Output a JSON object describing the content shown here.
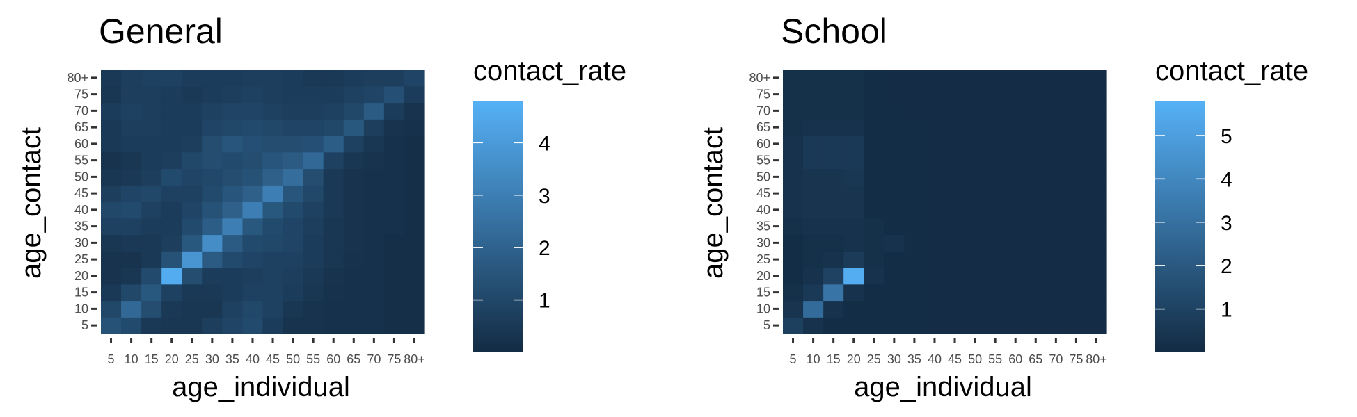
{
  "chart_data": [
    {
      "type": "heatmap",
      "title": "General",
      "xlabel": "age_individual",
      "ylabel": "age_contact",
      "legend_title": "contact_rate",
      "legend_placement": "right",
      "x_categories": [
        "5",
        "10",
        "15",
        "20",
        "25",
        "30",
        "35",
        "40",
        "45",
        "50",
        "55",
        "60",
        "65",
        "70",
        "75",
        "80+"
      ],
      "y_categories": [
        "5",
        "10",
        "15",
        "20",
        "25",
        "30",
        "35",
        "40",
        "45",
        "50",
        "55",
        "60",
        "65",
        "70",
        "75",
        "80+"
      ],
      "color_low": "#132b43",
      "color_high": "#56b1f7",
      "color_range": [
        0,
        4.8
      ],
      "legend_ticks": [
        1,
        2,
        3,
        4
      ],
      "z": [
        [
          1.4,
          1.1,
          0.5,
          0.4,
          0.4,
          0.7,
          0.9,
          1.1,
          0.6,
          0.3,
          0.3,
          0.2,
          0.2,
          0.2,
          0.15,
          0.15
        ],
        [
          1.0,
          2.2,
          1.2,
          0.5,
          0.4,
          0.4,
          0.8,
          1.0,
          0.8,
          0.4,
          0.3,
          0.2,
          0.2,
          0.2,
          0.15,
          0.15
        ],
        [
          0.5,
          1.0,
          1.6,
          0.8,
          0.5,
          0.5,
          0.6,
          0.8,
          0.8,
          0.6,
          0.4,
          0.25,
          0.2,
          0.2,
          0.15,
          0.15
        ],
        [
          0.3,
          0.4,
          1.1,
          4.6,
          1.2,
          0.6,
          0.6,
          0.7,
          0.8,
          0.7,
          0.5,
          0.3,
          0.2,
          0.2,
          0.15,
          0.15
        ],
        [
          0.3,
          0.3,
          0.5,
          1.4,
          3.8,
          1.7,
          1.1,
          0.9,
          0.8,
          0.8,
          0.6,
          0.4,
          0.25,
          0.2,
          0.15,
          0.15
        ],
        [
          0.4,
          0.5,
          0.5,
          0.7,
          1.6,
          3.5,
          1.7,
          1.1,
          1.0,
          0.9,
          0.6,
          0.4,
          0.3,
          0.2,
          0.15,
          0.15
        ],
        [
          0.8,
          0.8,
          0.6,
          0.6,
          1.1,
          1.8,
          3.0,
          1.6,
          1.1,
          0.9,
          0.7,
          0.4,
          0.3,
          0.2,
          0.2,
          0.15
        ],
        [
          1.0,
          1.1,
          0.8,
          0.6,
          0.9,
          1.4,
          1.9,
          3.0,
          1.6,
          1.1,
          0.8,
          0.5,
          0.3,
          0.2,
          0.2,
          0.15
        ],
        [
          0.7,
          0.9,
          1.0,
          0.8,
          0.8,
          1.1,
          1.5,
          1.9,
          3.0,
          1.5,
          1.0,
          0.5,
          0.3,
          0.2,
          0.2,
          0.15
        ],
        [
          0.4,
          0.5,
          0.7,
          1.1,
          0.9,
          1.0,
          1.2,
          1.4,
          1.9,
          2.4,
          1.2,
          0.5,
          0.3,
          0.2,
          0.2,
          0.15
        ],
        [
          0.3,
          0.4,
          0.6,
          0.7,
          1.0,
          1.2,
          1.1,
          1.2,
          1.5,
          1.7,
          2.2,
          0.8,
          0.4,
          0.3,
          0.2,
          0.15
        ],
        [
          0.5,
          0.6,
          0.6,
          0.6,
          0.7,
          1.2,
          1.5,
          1.3,
          1.2,
          1.2,
          1.3,
          1.8,
          0.8,
          0.4,
          0.2,
          0.15
        ],
        [
          0.5,
          0.7,
          0.7,
          0.6,
          0.6,
          0.9,
          1.0,
          1.1,
          1.0,
          0.9,
          0.9,
          1.0,
          1.6,
          0.7,
          0.3,
          0.2
        ],
        [
          0.6,
          0.8,
          0.7,
          0.6,
          0.6,
          0.8,
          0.9,
          0.9,
          0.8,
          0.7,
          0.7,
          0.8,
          1.0,
          1.7,
          0.6,
          0.3
        ],
        [
          0.4,
          0.7,
          0.7,
          0.6,
          0.5,
          0.6,
          0.7,
          0.8,
          0.7,
          0.6,
          0.6,
          0.6,
          0.8,
          0.9,
          1.3,
          0.6
        ],
        [
          0.5,
          0.7,
          0.8,
          0.8,
          0.6,
          0.6,
          0.6,
          0.7,
          0.7,
          0.6,
          0.5,
          0.5,
          0.6,
          0.7,
          0.7,
          0.9
        ]
      ]
    },
    {
      "type": "heatmap",
      "title": "School",
      "xlabel": "age_individual",
      "ylabel": "age_contact",
      "legend_title": "contact_rate",
      "legend_placement": "right",
      "x_categories": [
        "5",
        "10",
        "15",
        "20",
        "25",
        "30",
        "35",
        "40",
        "45",
        "50",
        "55",
        "60",
        "65",
        "70",
        "75",
        "80+"
      ],
      "y_categories": [
        "5",
        "10",
        "15",
        "20",
        "25",
        "30",
        "35",
        "40",
        "45",
        "50",
        "55",
        "60",
        "65",
        "70",
        "75",
        "80+"
      ],
      "color_low": "#132b43",
      "color_high": "#56b1f7",
      "color_range": [
        0,
        5.8
      ],
      "legend_ticks": [
        1,
        2,
        3,
        4,
        5
      ],
      "z": [
        [
          0.9,
          0.3,
          0.1,
          0.1,
          0.1,
          0.1,
          0.1,
          0.05,
          0.05,
          0.05,
          0.05,
          0.05,
          0.05,
          0.05,
          0.05,
          0.05
        ],
        [
          0.4,
          2.8,
          0.3,
          0.1,
          0.1,
          0.1,
          0.1,
          0.05,
          0.05,
          0.05,
          0.05,
          0.05,
          0.05,
          0.05,
          0.05,
          0.05
        ],
        [
          0.2,
          0.6,
          3.2,
          0.3,
          0.1,
          0.1,
          0.1,
          0.05,
          0.05,
          0.05,
          0.05,
          0.05,
          0.05,
          0.05,
          0.05,
          0.05
        ],
        [
          0.1,
          0.3,
          1.0,
          5.6,
          0.3,
          0.1,
          0.1,
          0.05,
          0.05,
          0.05,
          0.05,
          0.05,
          0.05,
          0.05,
          0.05,
          0.05
        ],
        [
          0.1,
          0.2,
          0.3,
          0.7,
          0.2,
          0.1,
          0.1,
          0.05,
          0.05,
          0.05,
          0.05,
          0.05,
          0.05,
          0.05,
          0.05,
          0.05
        ],
        [
          0.1,
          0.2,
          0.2,
          0.3,
          0.2,
          0.3,
          0.1,
          0.05,
          0.05,
          0.05,
          0.05,
          0.05,
          0.05,
          0.05,
          0.05,
          0.05
        ],
        [
          0.2,
          0.3,
          0.3,
          0.3,
          0.2,
          0.1,
          0.1,
          0.05,
          0.05,
          0.05,
          0.05,
          0.05,
          0.05,
          0.05,
          0.05,
          0.05
        ],
        [
          0.3,
          0.4,
          0.4,
          0.4,
          0.1,
          0.1,
          0.1,
          0.05,
          0.05,
          0.05,
          0.05,
          0.05,
          0.05,
          0.05,
          0.05,
          0.05
        ],
        [
          0.3,
          0.4,
          0.4,
          0.4,
          0.1,
          0.1,
          0.1,
          0.05,
          0.05,
          0.05,
          0.05,
          0.05,
          0.05,
          0.05,
          0.05,
          0.05
        ],
        [
          0.3,
          0.4,
          0.4,
          0.5,
          0.1,
          0.1,
          0.1,
          0.05,
          0.05,
          0.05,
          0.05,
          0.05,
          0.05,
          0.05,
          0.05,
          0.05
        ],
        [
          0.3,
          0.6,
          0.6,
          0.6,
          0.1,
          0.1,
          0.1,
          0.05,
          0.05,
          0.05,
          0.05,
          0.05,
          0.05,
          0.05,
          0.05,
          0.05
        ],
        [
          0.3,
          0.6,
          0.6,
          0.6,
          0.1,
          0.1,
          0.1,
          0.05,
          0.05,
          0.05,
          0.05,
          0.05,
          0.05,
          0.05,
          0.05,
          0.05
        ],
        [
          0.2,
          0.3,
          0.3,
          0.3,
          0.1,
          0.1,
          0.1,
          0.05,
          0.05,
          0.05,
          0.05,
          0.05,
          0.05,
          0.05,
          0.05,
          0.05
        ],
        [
          0.2,
          0.2,
          0.2,
          0.2,
          0.1,
          0.1,
          0.05,
          0.05,
          0.05,
          0.05,
          0.05,
          0.05,
          0.05,
          0.05,
          0.05,
          0.05
        ],
        [
          0.2,
          0.2,
          0.2,
          0.2,
          0.1,
          0.05,
          0.05,
          0.05,
          0.05,
          0.05,
          0.05,
          0.05,
          0.05,
          0.05,
          0.05,
          0.05
        ],
        [
          0.2,
          0.2,
          0.2,
          0.2,
          0.1,
          0.05,
          0.05,
          0.05,
          0.05,
          0.05,
          0.05,
          0.05,
          0.05,
          0.05,
          0.05,
          0.05
        ]
      ]
    }
  ]
}
